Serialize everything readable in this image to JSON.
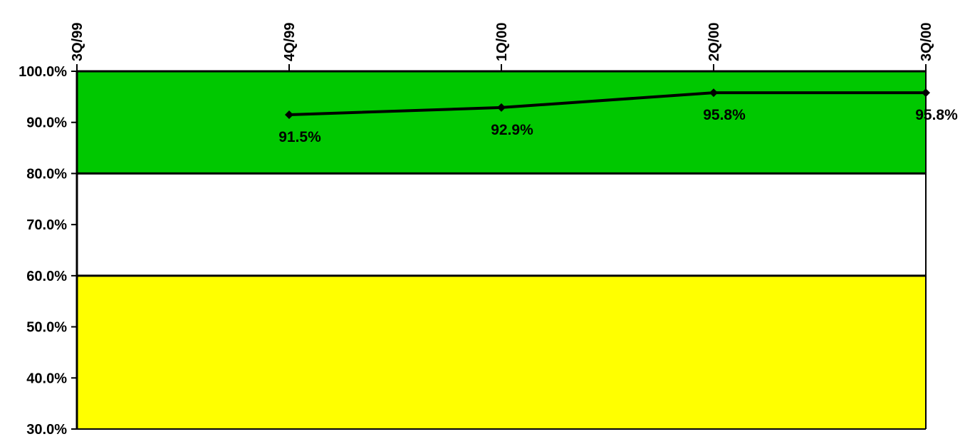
{
  "chart_data": {
    "type": "line",
    "categories": [
      "3Q/99",
      "4Q/99",
      "1Q/00",
      "2Q/00",
      "3Q/00"
    ],
    "series": [
      {
        "values": [
          null,
          91.5,
          92.9,
          95.8,
          95.8
        ]
      }
    ],
    "data_labels": [
      "",
      "91.5%",
      "92.9%",
      "95.8%",
      "95.8%"
    ],
    "ylim": [
      30,
      100
    ],
    "yticks": [
      {
        "value": 100,
        "label": "100.0%"
      },
      {
        "value": 90,
        "label": "90.0%"
      },
      {
        "value": 80,
        "label": "80.0%"
      },
      {
        "value": 70,
        "label": "70.0%"
      },
      {
        "value": 60,
        "label": "60.0%"
      },
      {
        "value": 50,
        "label": "50.0%"
      },
      {
        "value": 40,
        "label": "40.0%"
      },
      {
        "value": 30,
        "label": "30.0%"
      }
    ],
    "bands": [
      {
        "from": 80,
        "to": 100,
        "color": "#00c800"
      },
      {
        "from": 60,
        "to": 80,
        "color": "#ffffff"
      },
      {
        "from": 30,
        "to": 60,
        "color": "#ffff00"
      }
    ],
    "x_axis_position": "top",
    "x_labels_rotated": true,
    "grid": false,
    "line_color": "#000000",
    "marker": "diamond"
  }
}
